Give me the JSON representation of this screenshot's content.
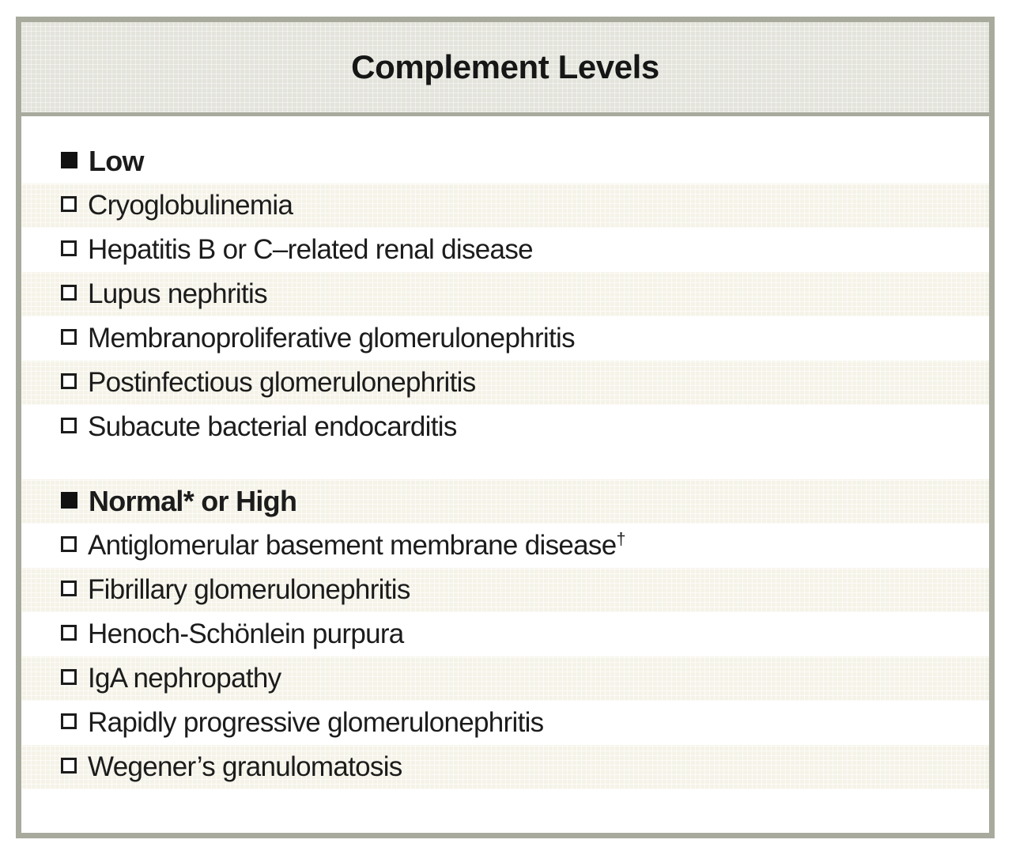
{
  "title": "Complement Levels",
  "colors": {
    "frame_border": "#a8aa9d",
    "header_bg": "#e4e4dc",
    "stripe_bg": "#f5f3e8",
    "text": "#1c1c1c"
  },
  "icons": {
    "section_bullet": "filled-square-icon",
    "item_bullet": "open-square-icon"
  },
  "rows": [
    {
      "type": "section",
      "text": "Low"
    },
    {
      "type": "item",
      "text": "Cryoglobulinemia"
    },
    {
      "type": "item",
      "text": "Hepatitis B or C–related renal disease"
    },
    {
      "type": "item",
      "text": "Lupus nephritis"
    },
    {
      "type": "item",
      "text": "Membranoproliferative glomerulonephritis"
    },
    {
      "type": "item",
      "text": "Postinfectious glomerulonephritis"
    },
    {
      "type": "item",
      "text": "Subacute bacterial endocarditis"
    },
    {
      "type": "section",
      "text": "Normal* or High"
    },
    {
      "type": "item",
      "text": "Antiglomerular basement membrane disease",
      "sup": "†"
    },
    {
      "type": "item",
      "text": "Fibrillary glomerulonephritis"
    },
    {
      "type": "item",
      "text": "Henoch-Schönlein purpura"
    },
    {
      "type": "item",
      "text": "IgA nephropathy"
    },
    {
      "type": "item",
      "text": "Rapidly progressive glomerulonephritis"
    },
    {
      "type": "item",
      "text": "Wegener’s granulomatosis"
    }
  ]
}
